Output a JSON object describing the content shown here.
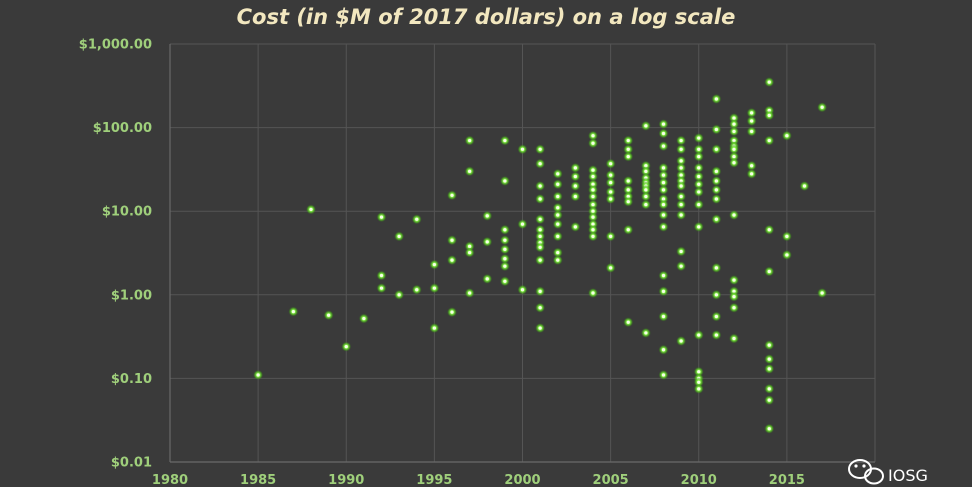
{
  "chart_data": {
    "type": "scatter",
    "title": "Cost (in $M of 2017 dollars) on a log scale",
    "xlabel": "",
    "ylabel": "",
    "xlim": [
      1980,
      2020
    ],
    "ylim": [
      0.01,
      1000
    ],
    "y_scale": "log",
    "x_ticks": [
      1980,
      1985,
      1990,
      1995,
      2000,
      2005,
      2010,
      2015
    ],
    "x_tick_labels": [
      "1980",
      "1985",
      "1990",
      "1995",
      "2000",
      "2005",
      "2010",
      "2015"
    ],
    "y_ticks": [
      0.01,
      0.1,
      1,
      10,
      100,
      1000
    ],
    "y_tick_labels": [
      "$0.01",
      "$0.10",
      "$1.00",
      "$10.00",
      "$100.00",
      "$1,000.00"
    ],
    "grid": true,
    "legend": "none",
    "marker_color": "#7df33a",
    "series": [
      {
        "points": [
          [
            1985,
            0.11
          ],
          [
            1987,
            0.63
          ],
          [
            1988,
            10.5
          ],
          [
            1989,
            0.57
          ],
          [
            1990,
            0.24
          ],
          [
            1991,
            0.52
          ],
          [
            1992,
            8.5
          ],
          [
            1992,
            1.7
          ],
          [
            1992,
            1.2
          ],
          [
            1993,
            5
          ],
          [
            1993,
            1.0
          ],
          [
            1994,
            8
          ],
          [
            1994,
            1.15
          ],
          [
            1995,
            2.3
          ],
          [
            1995,
            1.2
          ],
          [
            1995,
            0.4
          ],
          [
            1996,
            15.5
          ],
          [
            1996,
            4.5
          ],
          [
            1996,
            2.6
          ],
          [
            1996,
            0.62
          ],
          [
            1997,
            70
          ],
          [
            1997,
            30
          ],
          [
            1997,
            3.8
          ],
          [
            1997,
            3.2
          ],
          [
            1997,
            1.05
          ],
          [
            1998,
            8.8
          ],
          [
            1998,
            4.3
          ],
          [
            1998,
            1.55
          ],
          [
            1999,
            70
          ],
          [
            1999,
            23
          ],
          [
            1999,
            6
          ],
          [
            1999,
            4.5
          ],
          [
            1999,
            3.5
          ],
          [
            1999,
            2.7
          ],
          [
            1999,
            2.2
          ],
          [
            1999,
            1.45
          ],
          [
            2000,
            55
          ],
          [
            2000,
            7
          ],
          [
            2000,
            1.15
          ],
          [
            2001,
            55
          ],
          [
            2001,
            37
          ],
          [
            2001,
            20
          ],
          [
            2001,
            14
          ],
          [
            2001,
            8
          ],
          [
            2001,
            6
          ],
          [
            2001,
            5
          ],
          [
            2001,
            4.2
          ],
          [
            2001,
            3.7
          ],
          [
            2001,
            2.6
          ],
          [
            2001,
            1.1
          ],
          [
            2001,
            0.7
          ],
          [
            2001,
            0.4
          ],
          [
            2002,
            28
          ],
          [
            2002,
            21
          ],
          [
            2002,
            15
          ],
          [
            2002,
            11
          ],
          [
            2002,
            9
          ],
          [
            2002,
            7
          ],
          [
            2002,
            5
          ],
          [
            2002,
            3.2
          ],
          [
            2002,
            2.6
          ],
          [
            2003,
            33
          ],
          [
            2003,
            26
          ],
          [
            2003,
            20
          ],
          [
            2003,
            15
          ],
          [
            2003,
            6.5
          ],
          [
            2004,
            80
          ],
          [
            2004,
            65
          ],
          [
            2004,
            31
          ],
          [
            2004,
            26
          ],
          [
            2004,
            21
          ],
          [
            2004,
            18
          ],
          [
            2004,
            15
          ],
          [
            2004,
            12
          ],
          [
            2004,
            10
          ],
          [
            2004,
            8.5
          ],
          [
            2004,
            7
          ],
          [
            2004,
            6
          ],
          [
            2004,
            5
          ],
          [
            2004,
            1.05
          ],
          [
            2005,
            37
          ],
          [
            2005,
            27
          ],
          [
            2005,
            22
          ],
          [
            2005,
            17
          ],
          [
            2005,
            14
          ],
          [
            2005,
            5
          ],
          [
            2005,
            2.1
          ],
          [
            2006,
            70
          ],
          [
            2006,
            55
          ],
          [
            2006,
            45
          ],
          [
            2006,
            23
          ],
          [
            2006,
            18
          ],
          [
            2006,
            15
          ],
          [
            2006,
            13
          ],
          [
            2006,
            6
          ],
          [
            2006,
            0.47
          ],
          [
            2007,
            105
          ],
          [
            2007,
            35
          ],
          [
            2007,
            30
          ],
          [
            2007,
            25
          ],
          [
            2007,
            22
          ],
          [
            2007,
            20
          ],
          [
            2007,
            18
          ],
          [
            2007,
            15
          ],
          [
            2007,
            12
          ],
          [
            2007,
            0.35
          ],
          [
            2008,
            110
          ],
          [
            2008,
            85
          ],
          [
            2008,
            60
          ],
          [
            2008,
            33
          ],
          [
            2008,
            27
          ],
          [
            2008,
            22
          ],
          [
            2008,
            18
          ],
          [
            2008,
            14
          ],
          [
            2008,
            12
          ],
          [
            2008,
            9
          ],
          [
            2008,
            6.5
          ],
          [
            2008,
            1.7
          ],
          [
            2008,
            1.1
          ],
          [
            2008,
            0.55
          ],
          [
            2008,
            0.22
          ],
          [
            2008,
            0.11
          ],
          [
            2009,
            70
          ],
          [
            2009,
            55
          ],
          [
            2009,
            40
          ],
          [
            2009,
            33
          ],
          [
            2009,
            27
          ],
          [
            2009,
            23
          ],
          [
            2009,
            20
          ],
          [
            2009,
            15
          ],
          [
            2009,
            12
          ],
          [
            2009,
            9
          ],
          [
            2009,
            3.3
          ],
          [
            2009,
            2.2
          ],
          [
            2009,
            0.28
          ],
          [
            2010,
            75
          ],
          [
            2010,
            55
          ],
          [
            2010,
            45
          ],
          [
            2010,
            33
          ],
          [
            2010,
            26
          ],
          [
            2010,
            21
          ],
          [
            2010,
            17
          ],
          [
            2010,
            12
          ],
          [
            2010,
            6.5
          ],
          [
            2010,
            0.33
          ],
          [
            2010,
            0.12
          ],
          [
            2010,
            0.1
          ],
          [
            2010,
            0.09
          ],
          [
            2010,
            0.075
          ],
          [
            2011,
            220
          ],
          [
            2011,
            95
          ],
          [
            2011,
            55
          ],
          [
            2011,
            30
          ],
          [
            2011,
            23
          ],
          [
            2011,
            18
          ],
          [
            2011,
            14
          ],
          [
            2011,
            8
          ],
          [
            2011,
            2.1
          ],
          [
            2011,
            1.0
          ],
          [
            2011,
            0.55
          ],
          [
            2011,
            0.33
          ],
          [
            2012,
            130
          ],
          [
            2012,
            110
          ],
          [
            2012,
            90
          ],
          [
            2012,
            70
          ],
          [
            2012,
            60
          ],
          [
            2012,
            55
          ],
          [
            2012,
            45
          ],
          [
            2012,
            38
          ],
          [
            2012,
            9
          ],
          [
            2012,
            1.5
          ],
          [
            2012,
            1.1
          ],
          [
            2012,
            0.95
          ],
          [
            2012,
            0.7
          ],
          [
            2012,
            0.3
          ],
          [
            2013,
            150
          ],
          [
            2013,
            120
          ],
          [
            2013,
            90
          ],
          [
            2013,
            35
          ],
          [
            2013,
            28
          ],
          [
            2014,
            350
          ],
          [
            2014,
            160
          ],
          [
            2014,
            140
          ],
          [
            2014,
            70
          ],
          [
            2014,
            6
          ],
          [
            2014,
            1.9
          ],
          [
            2014,
            0.25
          ],
          [
            2014,
            0.17
          ],
          [
            2014,
            0.13
          ],
          [
            2014,
            0.075
          ],
          [
            2014,
            0.055
          ],
          [
            2014,
            0.025
          ],
          [
            2015,
            80
          ],
          [
            2015,
            5
          ],
          [
            2015,
            3
          ],
          [
            2016,
            20
          ],
          [
            2017,
            175
          ],
          [
            2017,
            1.05
          ]
        ]
      }
    ]
  },
  "watermark": {
    "text": "IOSG",
    "icon": "wechat-icon"
  }
}
